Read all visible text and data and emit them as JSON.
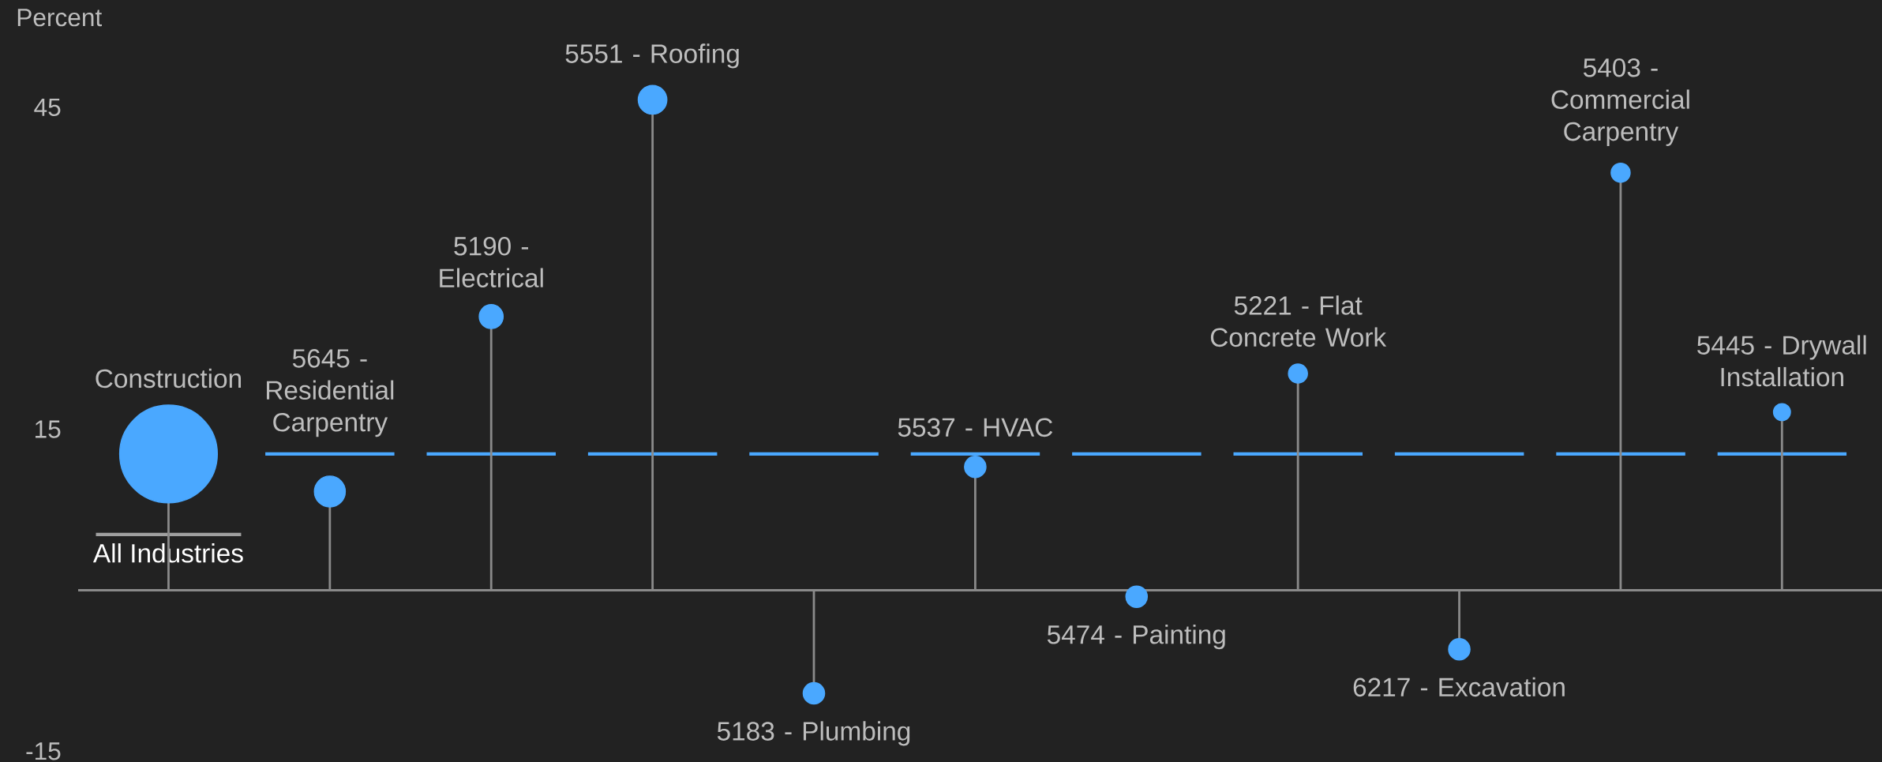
{
  "chart_data": {
    "type": "lollipop",
    "ylabel": "Percent",
    "color": "#4aa8ff",
    "categories": [
      "Construction",
      "5645 - Residential Carpentry",
      "5190 - Electrical",
      "5551 - Roofing",
      "5183 - Plumbing",
      "5537 - HVAC",
      "5474 - Painting",
      "5221 - Flat Concrete Work",
      "6217 - Excavation",
      "5403 - Commercial Carpentry",
      "5445 - Drywall Installation"
    ],
    "values": [
      12.7,
      9.2,
      25.5,
      45.7,
      -9.6,
      11.5,
      -0.6,
      20.2,
      -5.5,
      38.9,
      16.6
    ],
    "sizes": [
      1,
      0.1,
      0.06,
      0.086,
      0.048,
      0.048,
      0.048,
      0.038,
      0.048,
      0.038,
      0.03
    ],
    "ylim": [
      -16,
      55
    ],
    "yticks": [
      -15,
      15,
      45
    ],
    "ref_lines": [
      {
        "axis": "y",
        "value": 12.7,
        "color": "#4aa8ff"
      },
      {
        "axis": "y",
        "value": 5.2,
        "label": "All Industries",
        "color": "#a0a0a0"
      }
    ]
  }
}
